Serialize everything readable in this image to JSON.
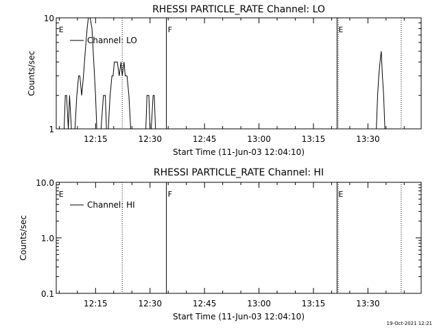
{
  "footer": {
    "timestamp": "19-Oct-2021 12:21"
  },
  "chart_data": [
    {
      "type": "line",
      "title": "RHESSI PARTICLE_RATE Channel: LO",
      "xlabel": "Start Time (11-Jun-03 12:04:10)",
      "ylabel": "Counts/sec",
      "yscale": "log",
      "ylim": [
        1,
        10
      ],
      "ytick_values": [
        1,
        10
      ],
      "ytick_labels": [
        "1",
        "10"
      ],
      "xlim": [
        "12:04:10",
        "13:44:40"
      ],
      "xtick_labels": [
        "12:15",
        "12:30",
        "12:45",
        "13:00",
        "13:15",
        "13:30"
      ],
      "legend": {
        "entries": [
          "Channel: LO"
        ],
        "placement": "top-left"
      },
      "events": [
        {
          "label": "E",
          "time": "12:04:30",
          "style": "none"
        },
        {
          "label": "",
          "time": "12:22:20",
          "style": "dotted"
        },
        {
          "label": "F",
          "time": "12:34:30",
          "style": "solid"
        },
        {
          "label": "E",
          "time": "13:21:30",
          "style": "solid"
        },
        {
          "label": "",
          "time": "13:21:50",
          "style": "dotted"
        },
        {
          "label": "",
          "time": "13:39:10",
          "style": "dotted"
        }
      ],
      "series": [
        {
          "name": "Channel: LO",
          "x": [
            "12:06:20",
            "12:06:40",
            "12:07:00",
            "12:07:30",
            "12:07:50",
            "12:08:20",
            "12:08:30",
            "12:09:00",
            "12:09:20",
            "12:09:50",
            "12:10:20",
            "12:10:40",
            "12:11:10",
            "12:11:40",
            "12:12:10",
            "12:12:40",
            "12:13:00",
            "12:13:30",
            "12:14:00",
            "12:14:30",
            "12:15:00",
            "12:15:20",
            "12:15:40",
            "12:16:10",
            "12:16:30",
            "12:17:10",
            "12:17:40",
            "12:18:00",
            "12:18:30",
            "12:19:00",
            "12:19:30",
            "12:19:50",
            "12:20:10",
            "12:20:40",
            "12:21:00",
            "12:21:30",
            "12:22:00",
            "12:22:20",
            "12:22:50",
            "12:23:10",
            "12:23:40",
            "12:24:10",
            "12:24:40",
            "12:25:00",
            "12:25:30",
            "12:26:00",
            "12:26:20",
            "12:26:40",
            "12:27:00",
            "12:27:30",
            "12:28:00",
            "12:28:20",
            "12:28:50",
            "12:29:10",
            "12:29:40",
            "12:30:00",
            "12:30:20",
            "12:30:50",
            "12:31:10",
            "12:31:30",
            "12:31:50",
            "12:32:20",
            "12:32:40",
            "12:33:00",
            "12:33:30",
            "12:34:00",
            "13:32:20",
            "13:32:40",
            "13:33:00",
            "13:33:20",
            "13:33:40",
            "13:34:00",
            "13:34:20",
            "13:34:40",
            "13:35:00",
            "13:35:20"
          ],
          "y": [
            1,
            2,
            2,
            1,
            2,
            1,
            1,
            1,
            1,
            2,
            3,
            3,
            2,
            3,
            5,
            8,
            10,
            10,
            8,
            4,
            2,
            1,
            1,
            1,
            1,
            2,
            2,
            1,
            1,
            2,
            3,
            3,
            4,
            4,
            4,
            3,
            4,
            3,
            4,
            3,
            3,
            2,
            1,
            1,
            1,
            1,
            1,
            1,
            1,
            1,
            1,
            1,
            1,
            2,
            2,
            1,
            1,
            2,
            2,
            1,
            1,
            1,
            1,
            1,
            1,
            1,
            1,
            2,
            3,
            4,
            5,
            3,
            2,
            1,
            1,
            1
          ]
        }
      ]
    },
    {
      "type": "line",
      "title": "RHESSI PARTICLE_RATE Channel: HI",
      "xlabel": "Start Time (11-Jun-03 12:04:10)",
      "ylabel": "Counts/sec",
      "yscale": "log",
      "ylim": [
        0.1,
        10
      ],
      "ytick_values": [
        0.1,
        1,
        10
      ],
      "ytick_labels": [
        "0.1",
        "1.0",
        "10.0"
      ],
      "xlim": [
        "12:04:10",
        "13:44:40"
      ],
      "xtick_labels": [
        "12:15",
        "12:30",
        "12:45",
        "13:00",
        "13:15",
        "13:30"
      ],
      "legend": {
        "entries": [
          "Channel: HI"
        ],
        "placement": "top-left"
      },
      "events": [
        {
          "label": "E",
          "time": "12:04:30",
          "style": "none"
        },
        {
          "label": "",
          "time": "12:22:20",
          "style": "dotted"
        },
        {
          "label": "F",
          "time": "12:34:30",
          "style": "solid"
        },
        {
          "label": "E",
          "time": "13:21:30",
          "style": "solid"
        },
        {
          "label": "",
          "time": "13:21:50",
          "style": "dotted"
        },
        {
          "label": "",
          "time": "13:39:10",
          "style": "dotted"
        }
      ],
      "series": [
        {
          "name": "Channel: HI",
          "x": [],
          "y": []
        }
      ]
    }
  ]
}
